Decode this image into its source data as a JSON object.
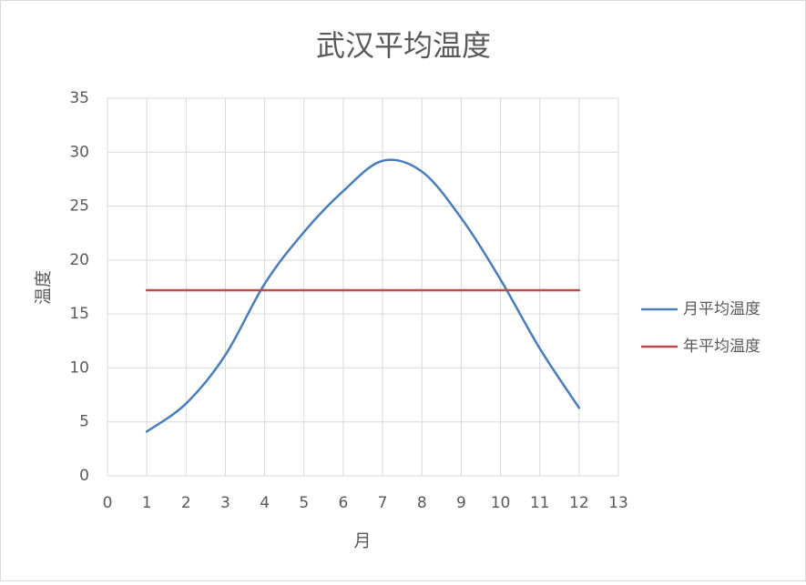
{
  "chart_data": {
    "type": "scatter",
    "smooth": true,
    "title": "武汉平均温度",
    "x_label": "月",
    "y_label": "温度",
    "x": [
      1,
      2,
      3,
      4,
      5,
      6,
      7,
      8,
      9,
      10,
      11,
      12
    ],
    "series": [
      {
        "name": "月平均温度",
        "color": "#4a7ebb",
        "values": [
          4.1,
          6.7,
          11.2,
          17.8,
          22.6,
          26.4,
          29.2,
          28.2,
          23.9,
          18.2,
          11.8,
          6.3
        ]
      },
      {
        "name": "年平均温度",
        "color": "#be4b48",
        "values": [
          17.2,
          17.2,
          17.2,
          17.2,
          17.2,
          17.2,
          17.2,
          17.2,
          17.2,
          17.2,
          17.2,
          17.2
        ]
      }
    ],
    "xlim": [
      0,
      13
    ],
    "xticks": [
      0,
      1,
      2,
      3,
      4,
      5,
      6,
      7,
      8,
      9,
      10,
      11,
      12,
      13
    ],
    "ylim": [
      0,
      35
    ],
    "yticks": [
      0,
      5,
      10,
      15,
      20,
      25,
      30,
      35
    ],
    "grid": true,
    "legend": "right"
  }
}
